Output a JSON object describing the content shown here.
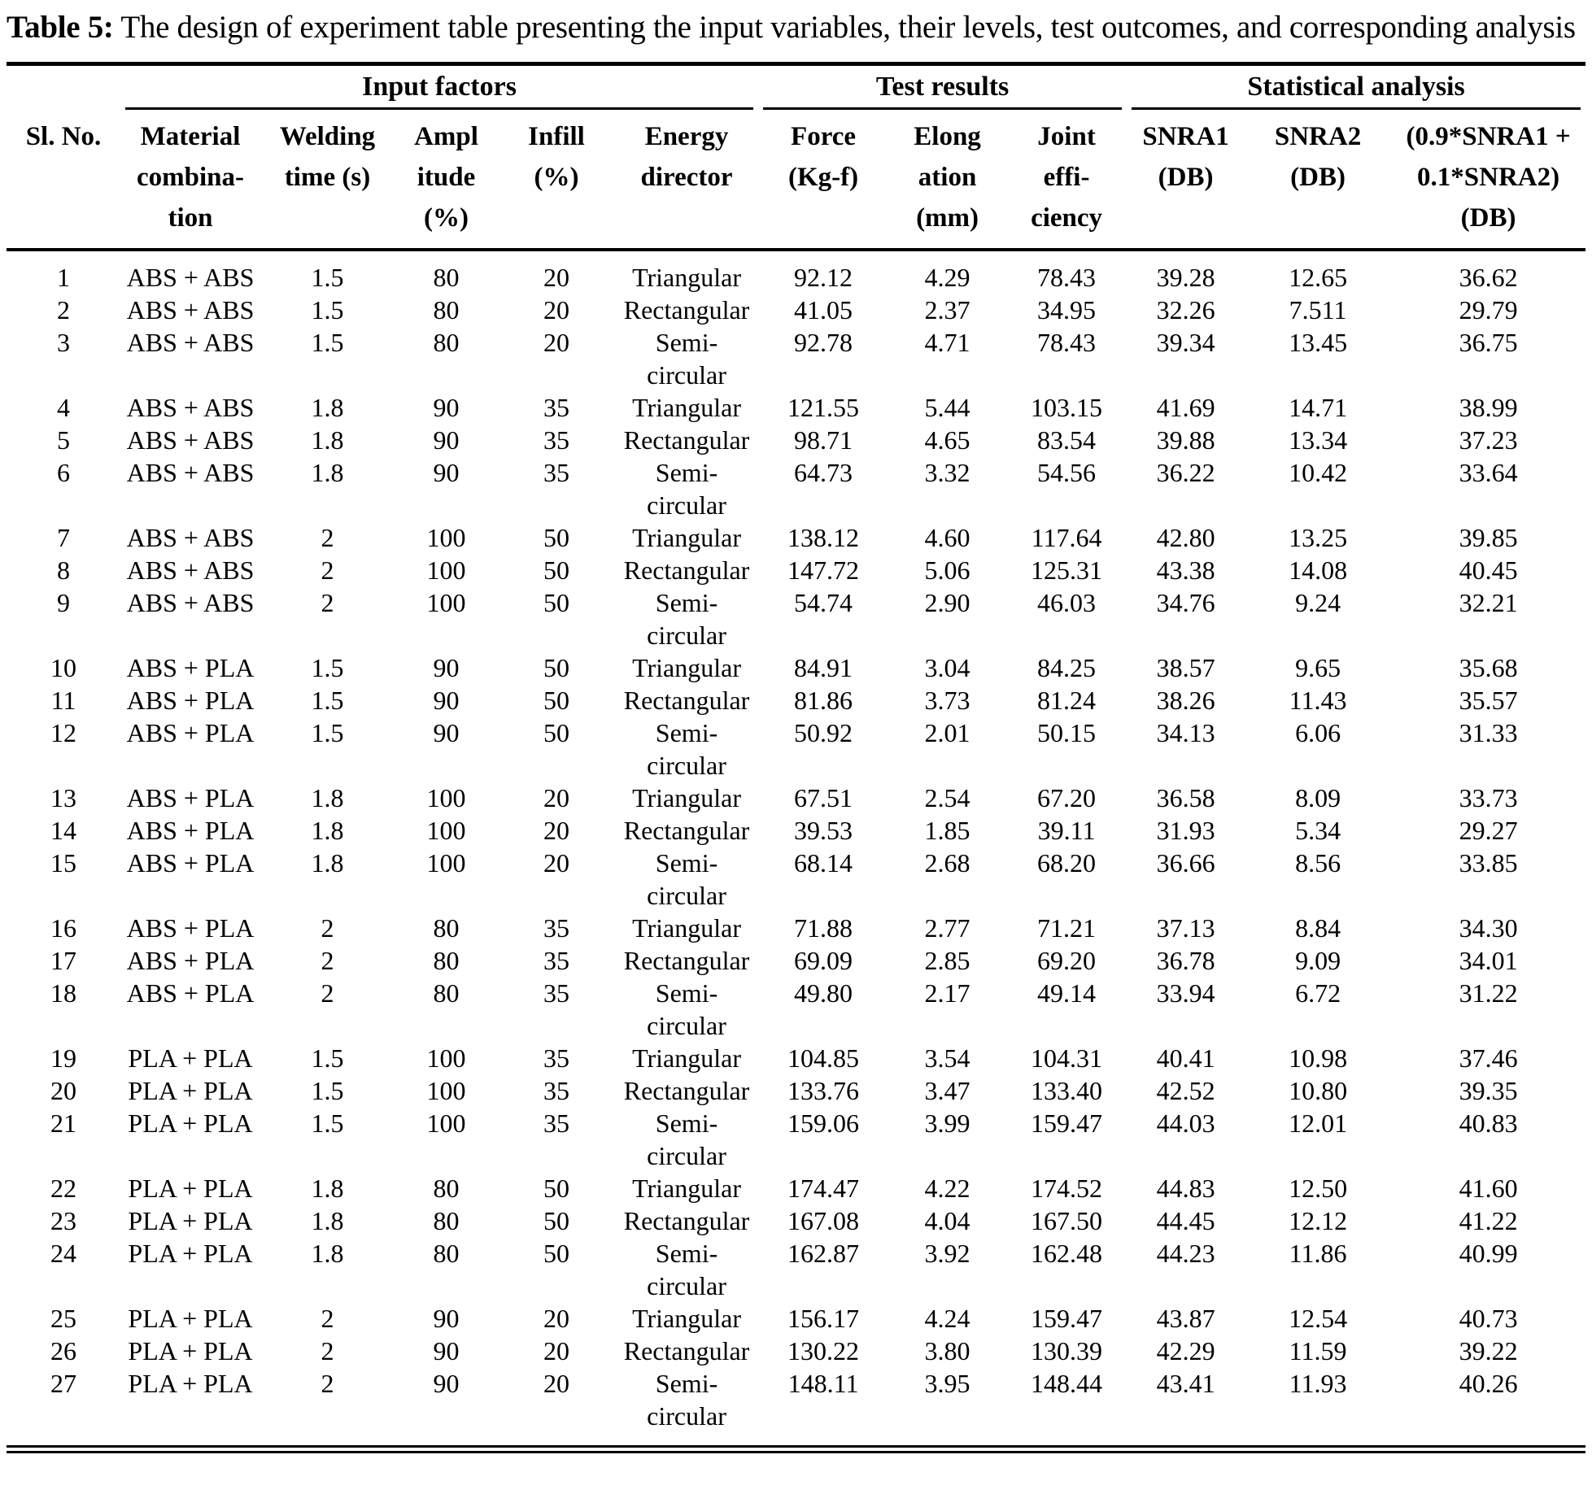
{
  "caption": {
    "label": "Table 5:",
    "text": "The design of experiment table presenting the input variables, their levels, test outcomes, and corresponding analysis"
  },
  "table": {
    "groups": [
      {
        "label": "",
        "span": 1
      },
      {
        "label": "Input factors",
        "span": 5
      },
      {
        "label": "Test results",
        "span": 3
      },
      {
        "label": "Statistical analysis",
        "span": 3
      }
    ],
    "columns": [
      "Sl. No.",
      "Material\ncombina-\ntion",
      "Welding\ntime (s)",
      "Ampl\nitude\n(%)",
      "Infill\n(%)",
      "Energy\ndirector",
      "Force\n(Kg-f)",
      "Elong\nation\n(mm)",
      "Joint\neffi-\nciency",
      "SNRA1\n(DB)",
      "SNRA2\n(DB)",
      "(0.9*SNRA1 +\n0.1*SNRA2)\n(DB)"
    ],
    "rows": [
      [
        "1",
        "ABS + ABS",
        "1.5",
        "80",
        "20",
        "Triangular",
        "92.12",
        "4.29",
        "78.43",
        "39.28",
        "12.65",
        "36.62"
      ],
      [
        "2",
        "ABS + ABS",
        "1.5",
        "80",
        "20",
        "Rectangular",
        "41.05",
        "2.37",
        "34.95",
        "32.26",
        "7.511",
        "29.79"
      ],
      [
        "3",
        "ABS + ABS",
        "1.5",
        "80",
        "20",
        "Semi-circular",
        "92.78",
        "4.71",
        "78.43",
        "39.34",
        "13.45",
        "36.75"
      ],
      [
        "4",
        "ABS + ABS",
        "1.8",
        "90",
        "35",
        "Triangular",
        "121.55",
        "5.44",
        "103.15",
        "41.69",
        "14.71",
        "38.99"
      ],
      [
        "5",
        "ABS + ABS",
        "1.8",
        "90",
        "35",
        "Rectangular",
        "98.71",
        "4.65",
        "83.54",
        "39.88",
        "13.34",
        "37.23"
      ],
      [
        "6",
        "ABS + ABS",
        "1.8",
        "90",
        "35",
        "Semi-circular",
        "64.73",
        "3.32",
        "54.56",
        "36.22",
        "10.42",
        "33.64"
      ],
      [
        "7",
        "ABS + ABS",
        "2",
        "100",
        "50",
        "Triangular",
        "138.12",
        "4.60",
        "117.64",
        "42.80",
        "13.25",
        "39.85"
      ],
      [
        "8",
        "ABS + ABS",
        "2",
        "100",
        "50",
        "Rectangular",
        "147.72",
        "5.06",
        "125.31",
        "43.38",
        "14.08",
        "40.45"
      ],
      [
        "9",
        "ABS + ABS",
        "2",
        "100",
        "50",
        "Semi-circular",
        "54.74",
        "2.90",
        "46.03",
        "34.76",
        "9.24",
        "32.21"
      ],
      [
        "10",
        "ABS + PLA",
        "1.5",
        "90",
        "50",
        "Triangular",
        "84.91",
        "3.04",
        "84.25",
        "38.57",
        "9.65",
        "35.68"
      ],
      [
        "11",
        "ABS + PLA",
        "1.5",
        "90",
        "50",
        "Rectangular",
        "81.86",
        "3.73",
        "81.24",
        "38.26",
        "11.43",
        "35.57"
      ],
      [
        "12",
        "ABS + PLA",
        "1.5",
        "90",
        "50",
        "Semi-circular",
        "50.92",
        "2.01",
        "50.15",
        "34.13",
        "6.06",
        "31.33"
      ],
      [
        "13",
        "ABS + PLA",
        "1.8",
        "100",
        "20",
        "Triangular",
        "67.51",
        "2.54",
        "67.20",
        "36.58",
        "8.09",
        "33.73"
      ],
      [
        "14",
        "ABS + PLA",
        "1.8",
        "100",
        "20",
        "Rectangular",
        "39.53",
        "1.85",
        "39.11",
        "31.93",
        "5.34",
        "29.27"
      ],
      [
        "15",
        "ABS + PLA",
        "1.8",
        "100",
        "20",
        "Semi-circular",
        "68.14",
        "2.68",
        "68.20",
        "36.66",
        "8.56",
        "33.85"
      ],
      [
        "16",
        "ABS + PLA",
        "2",
        "80",
        "35",
        "Triangular",
        "71.88",
        "2.77",
        "71.21",
        "37.13",
        "8.84",
        "34.30"
      ],
      [
        "17",
        "ABS + PLA",
        "2",
        "80",
        "35",
        "Rectangular",
        "69.09",
        "2.85",
        "69.20",
        "36.78",
        "9.09",
        "34.01"
      ],
      [
        "18",
        "ABS + PLA",
        "2",
        "80",
        "35",
        "Semi-circular",
        "49.80",
        "2.17",
        "49.14",
        "33.94",
        "6.72",
        "31.22"
      ],
      [
        "19",
        "PLA + PLA",
        "1.5",
        "100",
        "35",
        "Triangular",
        "104.85",
        "3.54",
        "104.31",
        "40.41",
        "10.98",
        "37.46"
      ],
      [
        "20",
        "PLA + PLA",
        "1.5",
        "100",
        "35",
        "Rectangular",
        "133.76",
        "3.47",
        "133.40",
        "42.52",
        "10.80",
        "39.35"
      ],
      [
        "21",
        "PLA + PLA",
        "1.5",
        "100",
        "35",
        "Semi-circular",
        "159.06",
        "3.99",
        "159.47",
        "44.03",
        "12.01",
        "40.83"
      ],
      [
        "22",
        "PLA + PLA",
        "1.8",
        "80",
        "50",
        "Triangular",
        "174.47",
        "4.22",
        "174.52",
        "44.83",
        "12.50",
        "41.60"
      ],
      [
        "23",
        "PLA + PLA",
        "1.8",
        "80",
        "50",
        "Rectangular",
        "167.08",
        "4.04",
        "167.50",
        "44.45",
        "12.12",
        "41.22"
      ],
      [
        "24",
        "PLA + PLA",
        "1.8",
        "80",
        "50",
        "Semi-circular",
        "162.87",
        "3.92",
        "162.48",
        "44.23",
        "11.86",
        "40.99"
      ],
      [
        "25",
        "PLA + PLA",
        "2",
        "90",
        "20",
        "Triangular",
        "156.17",
        "4.24",
        "159.47",
        "43.87",
        "12.54",
        "40.73"
      ],
      [
        "26",
        "PLA + PLA",
        "2",
        "90",
        "20",
        "Rectangular",
        "130.22",
        "3.80",
        "130.39",
        "42.29",
        "11.59",
        "39.22"
      ],
      [
        "27",
        "PLA + PLA",
        "2",
        "90",
        "20",
        "Semi-circular",
        "148.11",
        "3.95",
        "148.44",
        "43.41",
        "11.93",
        "40.26"
      ]
    ]
  }
}
